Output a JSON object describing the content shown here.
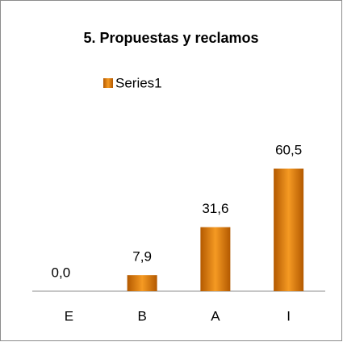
{
  "chart_data": {
    "type": "bar",
    "title": "5. Propuestas y reclamos",
    "categories": [
      "E",
      "B",
      "A",
      "I"
    ],
    "series": [
      {
        "name": "Series1",
        "color": "#f59a23",
        "values": [
          0.0,
          7.9,
          31.6,
          60.5
        ],
        "value_labels": [
          "0,0",
          "7,9",
          "31,6",
          "60,5"
        ]
      }
    ],
    "legend": "top"
  }
}
